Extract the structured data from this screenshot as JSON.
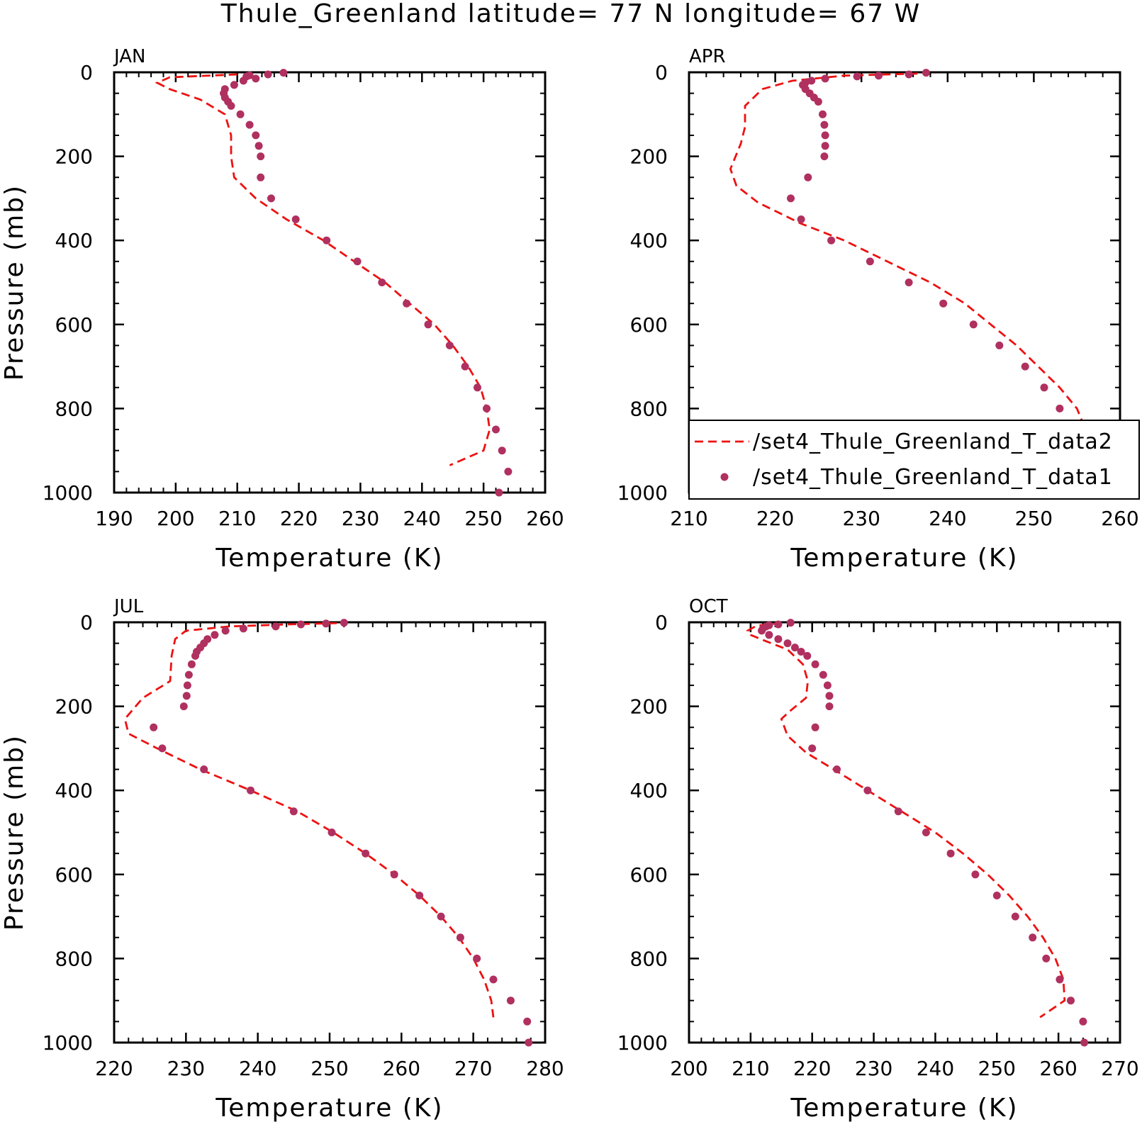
{
  "title": "Thule_Greenland  latitude= 77 N longitude= 67 W",
  "colors": {
    "model": "#ee1111",
    "obs": "#b03060",
    "axis": "#000000"
  },
  "chart_data": [
    {
      "type": "line",
      "panel": "JAN",
      "xlabel": "Temperature (K)",
      "ylabel": "Pressure (mb)",
      "xlim": [
        190,
        260
      ],
      "ylim": [
        1000,
        0
      ],
      "xticks": [
        190,
        200,
        210,
        220,
        230,
        240,
        250,
        260
      ],
      "yticks": [
        0,
        200,
        400,
        600,
        800,
        1000
      ],
      "series": [
        {
          "style": "dashed-line",
          "points": [
            [
              210,
              5
            ],
            [
              199,
              12
            ],
            [
              197,
              25
            ],
            [
              199,
              40
            ],
            [
              204,
              65
            ],
            [
              208,
              100
            ],
            [
              209,
              150
            ],
            [
              209,
              200
            ],
            [
              209.5,
              250
            ],
            [
              213,
              300
            ],
            [
              218,
              350
            ],
            [
              224,
              400
            ],
            [
              229,
              450
            ],
            [
              234,
              500
            ],
            [
              238,
              550
            ],
            [
              242,
              600
            ],
            [
              245,
              650
            ],
            [
              247.5,
              700
            ],
            [
              249.5,
              750
            ],
            [
              250.5,
              800
            ],
            [
              251,
              850
            ],
            [
              250,
              900
            ],
            [
              244.5,
              935
            ]
          ]
        },
        {
          "style": "dots",
          "points": [
            [
              217.5,
              1
            ],
            [
              215,
              5
            ],
            [
              212,
              7
            ],
            [
              211.5,
              10
            ],
            [
              213,
              15
            ],
            [
              211,
              20
            ],
            [
              209.5,
              30
            ],
            [
              208,
              40
            ],
            [
              207.8,
              50
            ],
            [
              208,
              60
            ],
            [
              208.5,
              70
            ],
            [
              209,
              80
            ],
            [
              210.5,
              100
            ],
            [
              212,
              125
            ],
            [
              213,
              150
            ],
            [
              213.5,
              175
            ],
            [
              213.8,
              200
            ],
            [
              213.8,
              250
            ],
            [
              215.5,
              300
            ],
            [
              219.5,
              350
            ],
            [
              224.5,
              400
            ],
            [
              229.5,
              450
            ],
            [
              233.5,
              500
            ],
            [
              237.5,
              550
            ],
            [
              241,
              600
            ],
            [
              244.5,
              650
            ],
            [
              247,
              700
            ],
            [
              249,
              750
            ],
            [
              250.5,
              800
            ],
            [
              252,
              850
            ],
            [
              253,
              900
            ],
            [
              254,
              950
            ],
            [
              252.5,
              1000
            ]
          ]
        }
      ]
    },
    {
      "type": "line",
      "panel": "APR",
      "xlabel": "Temperature (K)",
      "ylabel": "",
      "xlim": [
        210,
        260
      ],
      "ylim": [
        1000,
        0
      ],
      "xticks": [
        210,
        220,
        230,
        240,
        250,
        260
      ],
      "yticks": [
        0,
        200,
        400,
        600,
        800,
        1000
      ],
      "legend": [
        "/set4_Thule_Greenland_T_data2",
        "/set4_Thule_Greenland_T_data1"
      ],
      "series": [
        {
          "name": "/set4_Thule_Greenland_T_data2",
          "style": "dashed-line",
          "points": [
            [
              236.5,
              3
            ],
            [
              228,
              8
            ],
            [
              222,
              20
            ],
            [
              218.5,
              40
            ],
            [
              216.5,
              80
            ],
            [
              216.5,
              130
            ],
            [
              216,
              170
            ],
            [
              214.8,
              230
            ],
            [
              215.5,
              270
            ],
            [
              218,
              310
            ],
            [
              223,
              360
            ],
            [
              228,
              400
            ],
            [
              233,
              450
            ],
            [
              238,
              500
            ],
            [
              242,
              550
            ],
            [
              245,
              600
            ],
            [
              248,
              650
            ],
            [
              250.5,
              700
            ],
            [
              253,
              750
            ],
            [
              255,
              800
            ],
            [
              256,
              850
            ],
            [
              255.8,
              900
            ],
            [
              254.5,
              950
            ]
          ]
        },
        {
          "name": "/set4_Thule_Greenland_T_data1",
          "style": "dots",
          "points": [
            [
              237.5,
              1
            ],
            [
              235.5,
              5
            ],
            [
              232,
              8
            ],
            [
              229.5,
              10
            ],
            [
              225.8,
              15
            ],
            [
              224.2,
              20
            ],
            [
              223.5,
              25
            ],
            [
              223.2,
              30
            ],
            [
              223.5,
              40
            ],
            [
              224,
              50
            ],
            [
              224.5,
              60
            ],
            [
              225,
              70
            ],
            [
              225.5,
              100
            ],
            [
              225.7,
              125
            ],
            [
              225.8,
              150
            ],
            [
              225.8,
              175
            ],
            [
              225.7,
              200
            ],
            [
              223.8,
              250
            ],
            [
              221.8,
              300
            ],
            [
              223,
              350
            ],
            [
              226.5,
              400
            ],
            [
              231,
              450
            ],
            [
              235.5,
              500
            ],
            [
              239.5,
              550
            ],
            [
              243,
              600
            ],
            [
              246,
              650
            ],
            [
              249,
              700
            ],
            [
              251.2,
              750
            ],
            [
              253,
              800
            ],
            [
              254.5,
              850
            ],
            [
              256,
              900
            ],
            [
              257,
              950
            ],
            [
              257,
              1000
            ]
          ]
        }
      ]
    },
    {
      "type": "line",
      "panel": "JUL",
      "xlabel": "Temperature (K)",
      "ylabel": "Pressure (mb)",
      "xlim": [
        220,
        280
      ],
      "ylim": [
        1000,
        0
      ],
      "xticks": [
        220,
        230,
        240,
        250,
        260,
        270,
        280
      ],
      "yticks": [
        0,
        200,
        400,
        600,
        800,
        1000
      ],
      "series": [
        {
          "style": "dashed-line",
          "points": [
            [
              251,
              2
            ],
            [
              244,
              5
            ],
            [
              236,
              10
            ],
            [
              230,
              20
            ],
            [
              228.5,
              40
            ],
            [
              228,
              80
            ],
            [
              227.8,
              140
            ],
            [
              224,
              180
            ],
            [
              221.5,
              230
            ],
            [
              222,
              265
            ],
            [
              226,
              300
            ],
            [
              232,
              350
            ],
            [
              239,
              400
            ],
            [
              245.5,
              450
            ],
            [
              250.5,
              500
            ],
            [
              255,
              550
            ],
            [
              259,
              600
            ],
            [
              262.5,
              650
            ],
            [
              265.5,
              700
            ],
            [
              268,
              750
            ],
            [
              270,
              800
            ],
            [
              271.5,
              850
            ],
            [
              272.5,
              900
            ],
            [
              272.8,
              940
            ]
          ]
        },
        {
          "style": "dots",
          "points": [
            [
              252,
              1
            ],
            [
              249.5,
              3
            ],
            [
              246,
              5
            ],
            [
              242.5,
              10
            ],
            [
              238,
              15
            ],
            [
              235.5,
              20
            ],
            [
              234,
              30
            ],
            [
              233,
              40
            ],
            [
              232.5,
              50
            ],
            [
              232,
              60
            ],
            [
              231.5,
              70
            ],
            [
              231.3,
              80
            ],
            [
              230.8,
              100
            ],
            [
              230.4,
              125
            ],
            [
              230.2,
              150
            ],
            [
              230.1,
              175
            ],
            [
              229.7,
              200
            ],
            [
              225.5,
              250
            ],
            [
              226.7,
              300
            ],
            [
              232.5,
              350
            ],
            [
              239,
              400
            ],
            [
              245,
              450
            ],
            [
              250.3,
              500
            ],
            [
              255,
              550
            ],
            [
              259,
              600
            ],
            [
              262.5,
              650
            ],
            [
              265.5,
              700
            ],
            [
              268.2,
              750
            ],
            [
              270.5,
              800
            ],
            [
              272.8,
              850
            ],
            [
              275.2,
              900
            ],
            [
              277.5,
              950
            ],
            [
              277.7,
              1000
            ]
          ]
        }
      ]
    },
    {
      "type": "line",
      "panel": "OCT",
      "xlabel": "Temperature (K)",
      "ylabel": "",
      "xlim": [
        200,
        270
      ],
      "ylim": [
        1000,
        0
      ],
      "xticks": [
        200,
        210,
        220,
        230,
        240,
        250,
        260,
        270
      ],
      "yticks": [
        0,
        200,
        400,
        600,
        800,
        1000
      ],
      "series": [
        {
          "style": "dashed-line",
          "points": [
            [
              215,
              2
            ],
            [
              211,
              8
            ],
            [
              209.5,
              20
            ],
            [
              210,
              30
            ],
            [
              212.5,
              45
            ],
            [
              216,
              65
            ],
            [
              218.5,
              100
            ],
            [
              219.3,
              140
            ],
            [
              219,
              180
            ],
            [
              216.5,
              210
            ],
            [
              215,
              230
            ],
            [
              216,
              270
            ],
            [
              219,
              310
            ],
            [
              223.5,
              350
            ],
            [
              229,
              400
            ],
            [
              234.5,
              450
            ],
            [
              240,
              500
            ],
            [
              244.5,
              550
            ],
            [
              248.5,
              600
            ],
            [
              252,
              650
            ],
            [
              255,
              700
            ],
            [
              257.5,
              750
            ],
            [
              259.5,
              800
            ],
            [
              260.8,
              850
            ],
            [
              261,
              900
            ],
            [
              257,
              940
            ]
          ]
        },
        {
          "style": "dots",
          "points": [
            [
              216.5,
              1
            ],
            [
              214.5,
              5
            ],
            [
              213,
              7
            ],
            [
              212.5,
              10
            ],
            [
              212,
              15
            ],
            [
              211.8,
              20
            ],
            [
              213,
              30
            ],
            [
              214.5,
              40
            ],
            [
              216,
              50
            ],
            [
              217.2,
              60
            ],
            [
              218.2,
              70
            ],
            [
              219.2,
              80
            ],
            [
              220.5,
              100
            ],
            [
              221.8,
              125
            ],
            [
              222.5,
              150
            ],
            [
              222.8,
              175
            ],
            [
              222.8,
              200
            ],
            [
              220.5,
              250
            ],
            [
              220,
              300
            ],
            [
              224,
              350
            ],
            [
              229,
              400
            ],
            [
              234,
              450
            ],
            [
              238.5,
              500
            ],
            [
              242.5,
              550
            ],
            [
              246.5,
              600
            ],
            [
              250,
              650
            ],
            [
              253,
              700
            ],
            [
              255.8,
              750
            ],
            [
              258,
              800
            ],
            [
              260.2,
              850
            ],
            [
              262,
              900
            ],
            [
              264,
              950
            ],
            [
              264.2,
              1000
            ]
          ]
        }
      ]
    }
  ]
}
